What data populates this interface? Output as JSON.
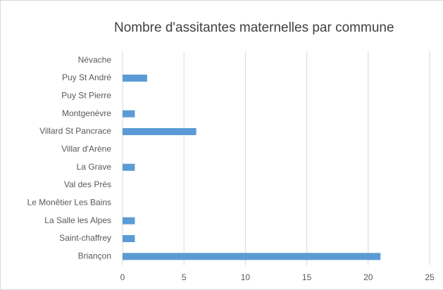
{
  "chart_data": {
    "type": "bar",
    "orientation": "horizontal",
    "title": "Nombre d'assitantes maternelles par commune",
    "categories": [
      "Névache",
      "Puy St André",
      "Puy St Pierre",
      "Montgenèvre",
      "Villard St Pancrace",
      "Villar d'Arène",
      "La Grave",
      "Val des Prés",
      "Le Monêtier Les Bains",
      "La Salle les Alpes",
      "Saint-chaffrey",
      "Briançon"
    ],
    "values": [
      0,
      2,
      0,
      1,
      6,
      0,
      1,
      0,
      0,
      1,
      1,
      21
    ],
    "color": "#5b9bd5",
    "xlim": [
      0,
      25
    ],
    "xticks": [
      0,
      5,
      10,
      15,
      20,
      25
    ],
    "grid": true
  }
}
